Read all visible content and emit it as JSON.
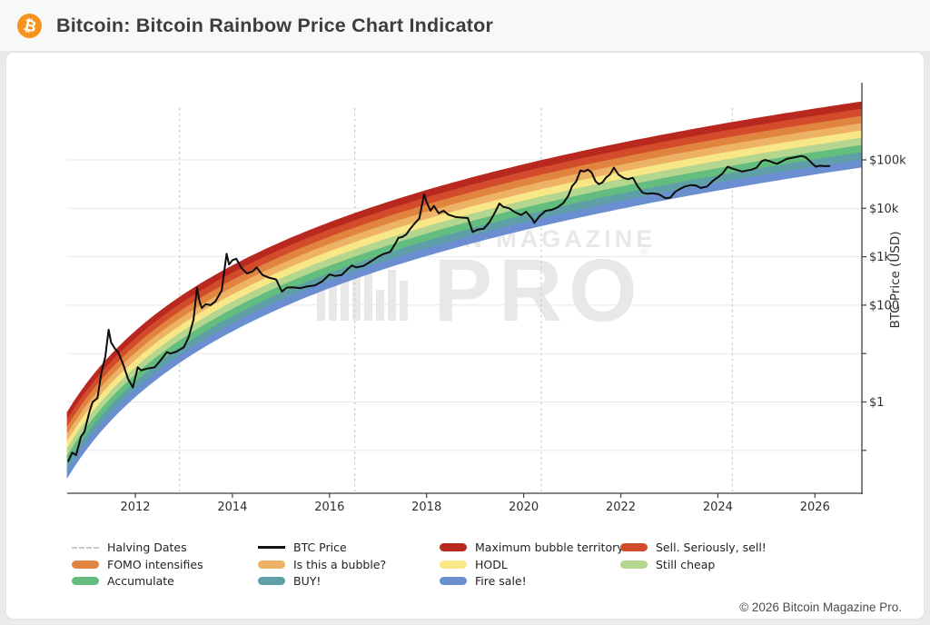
{
  "header": {
    "title": "Bitcoin: Bitcoin Rainbow Price Chart Indicator",
    "icon_glyph": "₿"
  },
  "watermark": {
    "line1": "BITCOIN MAGAZINE",
    "reg": "®",
    "line2": "PRO"
  },
  "footer": {
    "copyright": "© 2026 Bitcoin Magazine Pro."
  },
  "colors": {
    "accent_orange": "#f7931a",
    "price_line": "#0d0d0d",
    "grid": "#e8e8e8",
    "halving_line": "#c9c9c9",
    "spine": "#3f3f3f",
    "watermark": "#e8e8e8",
    "page_bg": "#e9ebeb",
    "card_bg": "#ffffff"
  },
  "axes": {
    "y_label": "BTC Price (USD)",
    "y_ticks": [
      {
        "label": "$100k",
        "log": 5
      },
      {
        "label": "$10k",
        "log": 4
      },
      {
        "label": "$1k",
        "log": 3
      },
      {
        "label": "$100",
        "log": 2
      },
      {
        "label": "$1",
        "log": 0
      }
    ],
    "gridline_logs": [
      5,
      4,
      3,
      2,
      1,
      0,
      -1
    ],
    "x_tick_years": [
      2012,
      2014,
      2016,
      2018,
      2020,
      2022,
      2024,
      2026
    ]
  },
  "chart_data": {
    "type": "line+bands",
    "title": "Bitcoin Rainbow Price Chart Indicator",
    "y_scale": "log10 (USD)",
    "x_range_years": [
      2010.6,
      2026.97
    ],
    "halving_dates_years": [
      2012.91,
      2016.52,
      2020.36,
      2024.3
    ],
    "rainbow": {
      "formula": "log10(price) = a*ln(days since 2009-01-03) + b  (band center)",
      "coef_a": 2.645,
      "coef_b": -17.72,
      "band_half_width_decades": 0.675,
      "bands_top_to_bottom": [
        {
          "label": "Maximum bubble territory",
          "color": "#b9281f"
        },
        {
          "label": "Sell. Seriously, sell!",
          "color": "#d24b2b"
        },
        {
          "label": "FOMO intensifies",
          "color": "#e08440"
        },
        {
          "label": "Is this a bubble?",
          "color": "#edb265"
        },
        {
          "label": "HODL",
          "color": "#f8e786"
        },
        {
          "label": "Still cheap",
          "color": "#b5d68f"
        },
        {
          "label": "Accumulate",
          "color": "#62bd7e"
        },
        {
          "label": "BUY!",
          "color": "#5f9fa7"
        },
        {
          "label": "Fire sale!",
          "color": "#6a8ed0"
        }
      ]
    },
    "btc_price_usd_by_year": [
      [
        2010.62,
        0.06
      ],
      [
        2010.7,
        0.09
      ],
      [
        2010.78,
        0.08
      ],
      [
        2010.88,
        0.19
      ],
      [
        2010.95,
        0.24
      ],
      [
        2011.05,
        0.6
      ],
      [
        2011.12,
        1.0
      ],
      [
        2011.22,
        1.2
      ],
      [
        2011.3,
        4.0
      ],
      [
        2011.38,
        8.5
      ],
      [
        2011.45,
        31
      ],
      [
        2011.5,
        17
      ],
      [
        2011.58,
        12.6
      ],
      [
        2011.65,
        10.5
      ],
      [
        2011.75,
        6.0
      ],
      [
        2011.85,
        3.0
      ],
      [
        2011.95,
        2.0
      ],
      [
        2012.05,
        5.2
      ],
      [
        2012.12,
        4.5
      ],
      [
        2012.25,
        4.9
      ],
      [
        2012.4,
        5.2
      ],
      [
        2012.55,
        7.9
      ],
      [
        2012.65,
        10.7
      ],
      [
        2012.72,
        10.0
      ],
      [
        2012.85,
        11.0
      ],
      [
        2013.0,
        13.5
      ],
      [
        2013.1,
        22
      ],
      [
        2013.2,
        50
      ],
      [
        2013.27,
        230
      ],
      [
        2013.32,
        120
      ],
      [
        2013.37,
        87
      ],
      [
        2013.45,
        105
      ],
      [
        2013.55,
        100
      ],
      [
        2013.65,
        120
      ],
      [
        2013.78,
        200
      ],
      [
        2013.88,
        1150
      ],
      [
        2013.93,
        690
      ],
      [
        2014.0,
        850
      ],
      [
        2014.08,
        910
      ],
      [
        2014.18,
        600
      ],
      [
        2014.3,
        450
      ],
      [
        2014.42,
        500
      ],
      [
        2014.5,
        600
      ],
      [
        2014.62,
        420
      ],
      [
        2014.75,
        370
      ],
      [
        2014.9,
        340
      ],
      [
        2015.02,
        190
      ],
      [
        2015.12,
        230
      ],
      [
        2015.25,
        234
      ],
      [
        2015.4,
        224
      ],
      [
        2015.55,
        245
      ],
      [
        2015.7,
        257
      ],
      [
        2015.85,
        310
      ],
      [
        2016.0,
        430
      ],
      [
        2016.12,
        400
      ],
      [
        2016.25,
        420
      ],
      [
        2016.38,
        560
      ],
      [
        2016.46,
        660
      ],
      [
        2016.55,
        600
      ],
      [
        2016.7,
        645
      ],
      [
        2016.85,
        795
      ],
      [
        2017.0,
        1000
      ],
      [
        2017.12,
        1150
      ],
      [
        2017.25,
        1260
      ],
      [
        2017.35,
        1820
      ],
      [
        2017.42,
        2450
      ],
      [
        2017.5,
        2570
      ],
      [
        2017.58,
        2880
      ],
      [
        2017.65,
        3630
      ],
      [
        2017.75,
        4790
      ],
      [
        2017.85,
        6170
      ],
      [
        2017.95,
        19500
      ],
      [
        2018.0,
        13500
      ],
      [
        2018.08,
        8900
      ],
      [
        2018.15,
        11200
      ],
      [
        2018.25,
        7900
      ],
      [
        2018.35,
        8900
      ],
      [
        2018.45,
        7400
      ],
      [
        2018.6,
        6600
      ],
      [
        2018.72,
        6450
      ],
      [
        2018.85,
        6300
      ],
      [
        2018.95,
        3240
      ],
      [
        2019.05,
        3630
      ],
      [
        2019.18,
        3800
      ],
      [
        2019.3,
        5250
      ],
      [
        2019.4,
        7900
      ],
      [
        2019.5,
        12600
      ],
      [
        2019.58,
        10700
      ],
      [
        2019.7,
        10000
      ],
      [
        2019.82,
        8300
      ],
      [
        2019.95,
        7250
      ],
      [
        2020.05,
        8500
      ],
      [
        2020.18,
        6000
      ],
      [
        2020.22,
        5000
      ],
      [
        2020.32,
        6760
      ],
      [
        2020.45,
        8900
      ],
      [
        2020.58,
        9300
      ],
      [
        2020.7,
        10500
      ],
      [
        2020.82,
        12900
      ],
      [
        2020.92,
        18200
      ],
      [
        2021.0,
        28800
      ],
      [
        2021.08,
        35500
      ],
      [
        2021.17,
        60300
      ],
      [
        2021.25,
        57500
      ],
      [
        2021.32,
        63000
      ],
      [
        2021.4,
        55000
      ],
      [
        2021.48,
        36300
      ],
      [
        2021.55,
        31600
      ],
      [
        2021.62,
        33900
      ],
      [
        2021.7,
        43700
      ],
      [
        2021.78,
        50100
      ],
      [
        2021.86,
        69200
      ],
      [
        2021.95,
        50100
      ],
      [
        2022.05,
        42700
      ],
      [
        2022.15,
        39800
      ],
      [
        2022.25,
        42700
      ],
      [
        2022.35,
        28200
      ],
      [
        2022.45,
        20900
      ],
      [
        2022.55,
        20000
      ],
      [
        2022.65,
        20400
      ],
      [
        2022.78,
        19500
      ],
      [
        2022.92,
        16200
      ],
      [
        2023.02,
        16600
      ],
      [
        2023.12,
        21900
      ],
      [
        2023.22,
        25100
      ],
      [
        2023.32,
        28200
      ],
      [
        2023.45,
        30200
      ],
      [
        2023.55,
        29500
      ],
      [
        2023.65,
        26300
      ],
      [
        2023.78,
        28200
      ],
      [
        2023.9,
        37200
      ],
      [
        2024.0,
        43700
      ],
      [
        2024.1,
        52500
      ],
      [
        2024.2,
        72400
      ],
      [
        2024.3,
        66100
      ],
      [
        2024.4,
        61700
      ],
      [
        2024.5,
        57500
      ],
      [
        2024.6,
        60300
      ],
      [
        2024.7,
        63000
      ],
      [
        2024.8,
        69200
      ],
      [
        2024.9,
        93300
      ],
      [
        2024.97,
        100000
      ],
      [
        2025.05,
        95500
      ],
      [
        2025.15,
        87100
      ],
      [
        2025.22,
        83200
      ],
      [
        2025.32,
        93300
      ],
      [
        2025.42,
        104700
      ],
      [
        2025.52,
        109600
      ],
      [
        2025.62,
        114800
      ],
      [
        2025.72,
        120200
      ],
      [
        2025.8,
        114800
      ],
      [
        2025.88,
        97700
      ],
      [
        2025.95,
        83200
      ],
      [
        2026.02,
        72400
      ],
      [
        2026.1,
        75900
      ],
      [
        2026.2,
        74100
      ],
      [
        2026.3,
        75000
      ]
    ]
  },
  "legend": {
    "columns": [
      [
        {
          "swatch": "dash",
          "color": "#c9c9c9",
          "label": "Halving Dates"
        },
        {
          "swatch": "band",
          "color": "#e08440",
          "label": "FOMO intensifies"
        },
        {
          "swatch": "band",
          "color": "#62bd7e",
          "label": "Accumulate"
        }
      ],
      [
        {
          "swatch": "line",
          "color": "#111111",
          "label": "BTC Price"
        },
        {
          "swatch": "band",
          "color": "#edb265",
          "label": "Is this a bubble?"
        },
        {
          "swatch": "band",
          "color": "#5f9fa7",
          "label": "BUY!"
        }
      ],
      [
        {
          "swatch": "band",
          "color": "#b9281f",
          "label": "Maximum bubble territory"
        },
        {
          "swatch": "band",
          "color": "#f8e786",
          "label": "HODL"
        },
        {
          "swatch": "band",
          "color": "#6a8ed0",
          "label": "Fire sale!"
        }
      ],
      [
        {
          "swatch": "band",
          "color": "#d24b2b",
          "label": "Sell. Seriously, sell!"
        },
        {
          "swatch": "band",
          "color": "#b5d68f",
          "label": "Still cheap"
        }
      ]
    ]
  }
}
